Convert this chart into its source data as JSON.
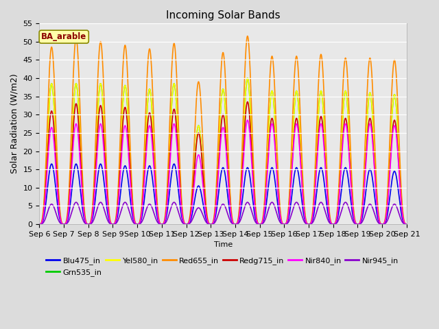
{
  "title": "Incoming Solar Bands",
  "ylabel": "Solar Radiation (W/m2)",
  "xlabel": "Time",
  "annotation": "BA_arable",
  "ylim": [
    0,
    55
  ],
  "n_days": 15,
  "x_tick_labels": [
    "Sep 6",
    "Sep 7",
    "Sep 8",
    "Sep 9",
    "Sep 10",
    "Sep 11",
    "Sep 12",
    "Sep 13",
    "Sep 14",
    "Sep 15",
    "Sep 16",
    "Sep 17",
    "Sep 18",
    "Sep 19",
    "Sep 20",
    "Sep 21"
  ],
  "series_order": [
    "Blu475_in",
    "Grn535_in",
    "Yel580_in",
    "Red655_in",
    "Redg715_in",
    "Nir840_in",
    "Nir945_in"
  ],
  "series": {
    "Blu475_in": {
      "color": "#0000EE",
      "lw": 1.2
    },
    "Grn535_in": {
      "color": "#00CC00",
      "lw": 1.2
    },
    "Yel580_in": {
      "color": "#FFFF00",
      "lw": 1.2
    },
    "Red655_in": {
      "color": "#FF8C00",
      "lw": 1.2
    },
    "Redg715_in": {
      "color": "#CC0000",
      "lw": 1.2
    },
    "Nir840_in": {
      "color": "#FF00FF",
      "lw": 1.2
    },
    "Nir945_in": {
      "color": "#8800CC",
      "lw": 1.2
    }
  },
  "peaks": {
    "Blu475_in": [
      16.5,
      16.5,
      16.5,
      16.0,
      16.0,
      16.5,
      10.5,
      15.5,
      15.5,
      15.5,
      15.5,
      15.5,
      15.5,
      15.0,
      14.5
    ],
    "Grn535_in": [
      38.5,
      38.5,
      38.5,
      38.0,
      37.0,
      38.5,
      27.0,
      37.0,
      40.0,
      36.5,
      36.5,
      36.5,
      36.5,
      36.0,
      35.5
    ],
    "Yel580_in": [
      38.5,
      38.5,
      38.5,
      38.0,
      37.0,
      38.5,
      27.0,
      37.0,
      40.0,
      36.5,
      36.5,
      36.5,
      36.5,
      36.0,
      35.5
    ],
    "Red655_in": [
      48.5,
      51.0,
      50.0,
      49.0,
      48.0,
      49.5,
      39.0,
      47.0,
      51.5,
      46.0,
      46.0,
      46.5,
      45.5,
      45.5,
      45.0
    ],
    "Redg715_in": [
      31.0,
      33.0,
      32.5,
      32.0,
      30.5,
      31.5,
      25.0,
      30.0,
      33.5,
      29.0,
      29.0,
      29.5,
      29.0,
      29.0,
      28.5
    ],
    "Nir840_in": [
      26.5,
      27.5,
      27.5,
      27.0,
      27.0,
      27.5,
      19.0,
      26.5,
      28.5,
      27.5,
      27.5,
      27.5,
      27.5,
      27.5,
      27.0
    ],
    "Nir945_in": [
      5.5,
      6.0,
      6.0,
      6.0,
      5.5,
      6.0,
      4.5,
      5.5,
      6.0,
      6.0,
      6.0,
      6.0,
      6.0,
      5.5,
      5.5
    ]
  },
  "fig_bg": "#DCDCDC",
  "plot_bg": "#E8E8E8",
  "yticks": [
    0,
    5,
    10,
    15,
    20,
    25,
    30,
    35,
    40,
    45,
    50,
    55
  ],
  "legend_order": [
    "Blu475_in",
    "Grn535_in",
    "Yel580_in",
    "Red655_in",
    "Redg715_in",
    "Nir840_in",
    "Nir945_in"
  ]
}
